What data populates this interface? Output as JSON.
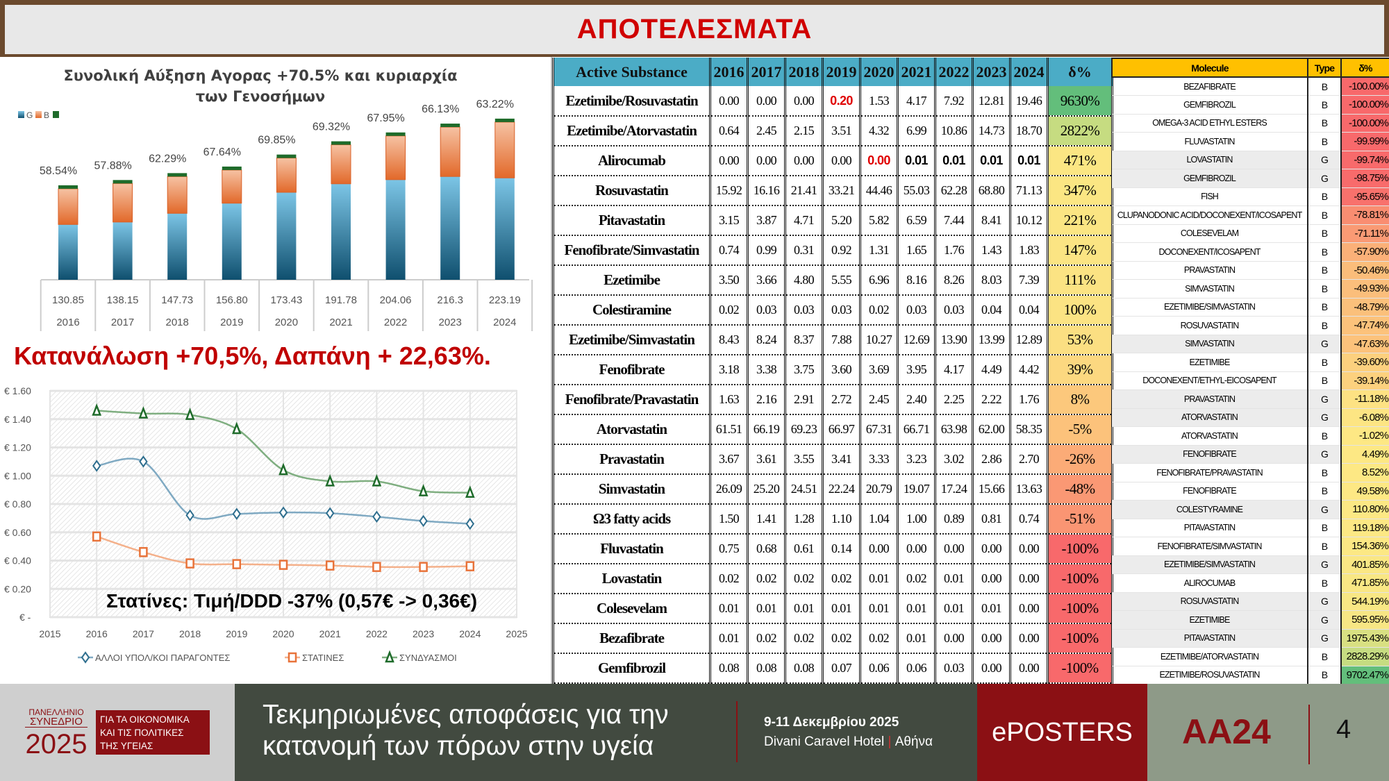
{
  "title": "ΑΠΟΤΕΛΕΣΜΑΤΑ",
  "headline": "Κατανάλωση +70,5%, Δαπάνη + 22,63%.",
  "main_table": {
    "headers": [
      "Active Substance",
      "2016",
      "2017",
      "2018",
      "2019",
      "2020",
      "2021",
      "2022",
      "2023",
      "2024",
      "δ%"
    ],
    "rows": [
      {
        "name": "Ezetimibe/Rosuvastatin",
        "values": [
          "0.00",
          "0.00",
          "0.00",
          "0.20",
          "1.53",
          "4.17",
          "7.92",
          "12.81",
          "19.46"
        ],
        "delta": "9630%",
        "color": "#63be7b",
        "red": [
          3
        ],
        "bold": []
      },
      {
        "name": "Ezetimibe/Atorvastatin",
        "values": [
          "0.64",
          "2.45",
          "2.15",
          "3.51",
          "4.32",
          "6.99",
          "10.86",
          "14.73",
          "18.70"
        ],
        "delta": "2822%",
        "color": "#c6dc81",
        "red": [],
        "bold": []
      },
      {
        "name": "Alirocumab",
        "values": [
          "0.00",
          "0.00",
          "0.00",
          "0.00",
          "0.00",
          "0.01",
          "0.01",
          "0.01",
          "0.01"
        ],
        "delta": "471%",
        "color": "#fbe683",
        "red": [
          4
        ],
        "bold": [
          5,
          6,
          7,
          8
        ]
      },
      {
        "name": "Rosuvastatin",
        "values": [
          "15.92",
          "16.16",
          "21.41",
          "33.21",
          "44.46",
          "55.03",
          "62.28",
          "68.80",
          "71.13"
        ],
        "delta": "347%",
        "color": "#fbe683",
        "red": [],
        "bold": []
      },
      {
        "name": "Pitavastatin",
        "values": [
          "3.15",
          "3.87",
          "4.71",
          "5.20",
          "5.82",
          "6.59",
          "7.44",
          "8.41",
          "10.12"
        ],
        "delta": "221%",
        "color": "#fbe583",
        "red": [],
        "bold": []
      },
      {
        "name": "Fenofibrate/Simvastatin",
        "values": [
          "0.74",
          "0.99",
          "0.31",
          "0.92",
          "1.31",
          "1.65",
          "1.76",
          "1.43",
          "1.83"
        ],
        "delta": "147%",
        "color": "#fbe483",
        "red": [],
        "bold": []
      },
      {
        "name": "Ezetimibe",
        "values": [
          "3.50",
          "3.66",
          "4.80",
          "5.55",
          "6.96",
          "8.16",
          "8.26",
          "8.03",
          "7.39"
        ],
        "delta": "111%",
        "color": "#fbe383",
        "red": [],
        "bold": []
      },
      {
        "name": "Colestiramine",
        "values": [
          "0.02",
          "0.03",
          "0.03",
          "0.03",
          "0.02",
          "0.03",
          "0.03",
          "0.04",
          "0.04"
        ],
        "delta": "100%",
        "color": "#fbe383",
        "red": [],
        "bold": []
      },
      {
        "name": "Ezetimibe/Simvastatin",
        "values": [
          "8.43",
          "8.24",
          "8.37",
          "7.88",
          "10.27",
          "12.69",
          "13.90",
          "13.99",
          "12.89"
        ],
        "delta": "53%",
        "color": "#fbdf82",
        "red": [],
        "bold": []
      },
      {
        "name": "Fenofibrate",
        "values": [
          "3.18",
          "3.38",
          "3.75",
          "3.60",
          "3.69",
          "3.95",
          "4.17",
          "4.49",
          "4.42"
        ],
        "delta": "39%",
        "color": "#fcd880",
        "red": [],
        "bold": []
      },
      {
        "name": "Fenofibrate/Pravastatin",
        "values": [
          "1.63",
          "2.16",
          "2.91",
          "2.72",
          "2.45",
          "2.40",
          "2.25",
          "2.22",
          "1.76"
        ],
        "delta": "8%",
        "color": "#fcc87c",
        "red": [],
        "bold": []
      },
      {
        "name": "Atorvastatin",
        "values": [
          "61.51",
          "66.19",
          "69.23",
          "66.97",
          "67.31",
          "66.71",
          "63.98",
          "62.00",
          "58.35"
        ],
        "delta": "-5%",
        "color": "#fcc27b",
        "red": [],
        "bold": []
      },
      {
        "name": "Pravastatin",
        "values": [
          "3.67",
          "3.61",
          "3.55",
          "3.41",
          "3.33",
          "3.23",
          "3.02",
          "2.86",
          "2.70"
        ],
        "delta": "-26%",
        "color": "#fbab77",
        "red": [],
        "bold": []
      },
      {
        "name": "Simvastatin",
        "values": [
          "26.09",
          "25.20",
          "24.51",
          "22.24",
          "20.79",
          "19.07",
          "17.24",
          "15.66",
          "13.63"
        ],
        "delta": "-48%",
        "color": "#fa9874",
        "red": [],
        "bold": []
      },
      {
        "name": "Ω3 fatty acids",
        "values": [
          "1.50",
          "1.41",
          "1.28",
          "1.10",
          "1.04",
          "1.00",
          "0.89",
          "0.81",
          "0.74"
        ],
        "delta": "-51%",
        "color": "#fa9573",
        "red": [],
        "bold": []
      },
      {
        "name": "Fluvastatin",
        "values": [
          "0.75",
          "0.68",
          "0.61",
          "0.14",
          "0.00",
          "0.00",
          "0.00",
          "0.00",
          "0.00"
        ],
        "delta": "-100%",
        "color": "#f8696b",
        "red": [],
        "bold": []
      },
      {
        "name": "Lovastatin",
        "values": [
          "0.02",
          "0.02",
          "0.02",
          "0.02",
          "0.01",
          "0.02",
          "0.01",
          "0.00",
          "0.00"
        ],
        "delta": "-100%",
        "color": "#f8696b",
        "red": [],
        "bold": []
      },
      {
        "name": "Colesevelam",
        "values": [
          "0.01",
          "0.01",
          "0.01",
          "0.01",
          "0.01",
          "0.01",
          "0.01",
          "0.01",
          "0.00"
        ],
        "delta": "-100%",
        "color": "#f8696b",
        "red": [],
        "bold": []
      },
      {
        "name": "Bezafibrate",
        "values": [
          "0.01",
          "0.02",
          "0.02",
          "0.02",
          "0.02",
          "0.01",
          "0.00",
          "0.00",
          "0.00"
        ],
        "delta": "-100%",
        "color": "#f8696b",
        "red": [],
        "bold": []
      },
      {
        "name": "Gemfibrozil",
        "values": [
          "0.08",
          "0.08",
          "0.08",
          "0.07",
          "0.06",
          "0.06",
          "0.03",
          "0.00",
          "0.00"
        ],
        "delta": "-100%",
        "color": "#f8696b",
        "red": [],
        "bold": []
      }
    ]
  },
  "side_table": {
    "headers": [
      "Molecule",
      "Type",
      "δ%"
    ],
    "rows": [
      {
        "molecule": "BEZAFIBRATE",
        "type": "B",
        "delta": "-100.00%",
        "color": "#f8696b"
      },
      {
        "molecule": "GEMFIBROZIL",
        "type": "B",
        "delta": "-100.00%",
        "color": "#f8696b"
      },
      {
        "molecule": "OMEGA-3 ACID ETHYL ESTERS",
        "type": "B",
        "delta": "-100.00%",
        "color": "#f8696b"
      },
      {
        "molecule": "FLUVASTATIN",
        "type": "B",
        "delta": "-99.99%",
        "color": "#f8696b"
      },
      {
        "molecule": "LOVASTATIN",
        "type": "G",
        "delta": "-99.74%",
        "color": "#f86a6b"
      },
      {
        "molecule": "GEMFIBROZIL",
        "type": "G",
        "delta": "-98.75%",
        "color": "#f86b6b"
      },
      {
        "molecule": "FISH",
        "type": "B",
        "delta": "-95.65%",
        "color": "#f8716c"
      },
      {
        "molecule": "CLUPANODONIC ACID/DOCONEXENT/ICOSAPENT",
        "type": "B",
        "delta": "-78.81%",
        "color": "#f98d71"
      },
      {
        "molecule": "COLESEVELAM",
        "type": "B",
        "delta": "-71.11%",
        "color": "#fa9a74"
      },
      {
        "molecule": "DOCONEXENT/ICOSAPENT",
        "type": "B",
        "delta": "-57.90%",
        "color": "#fbb078"
      },
      {
        "molecule": "PRAVASTATIN",
        "type": "B",
        "delta": "-50.46%",
        "color": "#fbbd7a"
      },
      {
        "molecule": "SIMVASTATIN",
        "type": "B",
        "delta": "-49.93%",
        "color": "#fbbe7b"
      },
      {
        "molecule": "EZETIMIBE/SIMVASTATIN",
        "type": "B",
        "delta": "-48.79%",
        "color": "#fbc07b"
      },
      {
        "molecule": "ROSUVASTATIN",
        "type": "B",
        "delta": "-47.74%",
        "color": "#fcc27b"
      },
      {
        "molecule": "SIMVASTATIN",
        "type": "G",
        "delta": "-47.63%",
        "color": "#fcc27b"
      },
      {
        "molecule": "EZETIMIBE",
        "type": "B",
        "delta": "-39.60%",
        "color": "#fcd07e"
      },
      {
        "molecule": "DOCONEXENT/ETHYL-EICOSAPENT",
        "type": "B",
        "delta": "-39.14%",
        "color": "#fcd17e"
      },
      {
        "molecule": "PRAVASTATIN",
        "type": "G",
        "delta": "-11.18%",
        "color": "#fde283"
      },
      {
        "molecule": "ATORVASTATIN",
        "type": "G",
        "delta": "-6.08%",
        "color": "#fde583"
      },
      {
        "molecule": "ATORVASTATIN",
        "type": "B",
        "delta": "-1.02%",
        "color": "#fde884"
      },
      {
        "molecule": "FENOFIBRATE",
        "type": "G",
        "delta": "4.49%",
        "color": "#fde884"
      },
      {
        "molecule": "FENOFIBRATE/PRAVASTATIN",
        "type": "B",
        "delta": "8.52%",
        "color": "#fde884"
      },
      {
        "molecule": "FENOFIBRATE",
        "type": "B",
        "delta": "49.58%",
        "color": "#fde884"
      },
      {
        "molecule": "COLESTYRAMINE",
        "type": "G",
        "delta": "110.80%",
        "color": "#fce884"
      },
      {
        "molecule": "PITAVASTATIN",
        "type": "B",
        "delta": "119.18%",
        "color": "#fce884"
      },
      {
        "molecule": "FENOFIBRATE/SIMVASTATIN",
        "type": "B",
        "delta": "154.36%",
        "color": "#fce884"
      },
      {
        "molecule": "EZETIMIBE/SIMVASTATIN",
        "type": "G",
        "delta": "401.85%",
        "color": "#fae784"
      },
      {
        "molecule": "ALIROCUMAB",
        "type": "B",
        "delta": "471.85%",
        "color": "#f9e784"
      },
      {
        "molecule": "ROSUVASTATIN",
        "type": "G",
        "delta": "544.19%",
        "color": "#f8e784"
      },
      {
        "molecule": "EZETIMIBE",
        "type": "G",
        "delta": "595.95%",
        "color": "#f7e684"
      },
      {
        "molecule": "PITAVASTATIN",
        "type": "G",
        "delta": "1975.43%",
        "color": "#d9e082"
      },
      {
        "molecule": "EZETIMIBE/ATORVASTATIN",
        "type": "B",
        "delta": "2828.29%",
        "color": "#c6dc81"
      },
      {
        "molecule": "EZETIMIBE/ROSUVASTATIN",
        "type": "B",
        "delta": "9702.47%",
        "color": "#63be7b"
      }
    ]
  },
  "chart_data": [
    {
      "type": "bar",
      "title": "Συνολική Αύξηση Αγορας +70.5% και κυριαρχία των Γενοσήμων",
      "legend": [
        "G",
        "B",
        ""
      ],
      "legend_position": "top-left",
      "categories": [
        "2016",
        "2017",
        "2018",
        "2019",
        "2020",
        "2021",
        "2022",
        "2023",
        "2024"
      ],
      "totals": [
        "130.85",
        "138.15",
        "147.73",
        "156.80",
        "173.43",
        "191.78",
        "204.06",
        "216.3",
        "223.19"
      ],
      "total_values": [
        130.85,
        138.15,
        147.73,
        156.8,
        173.43,
        191.78,
        204.06,
        216.3,
        223.19
      ],
      "generic_share_labels": [
        "58.54%",
        "57.88%",
        "62.29%",
        "67.64%",
        "69.85%",
        "69.32%",
        "67.95%",
        "66.13%",
        "63.22%"
      ],
      "generic_share": [
        58.54,
        57.88,
        62.29,
        67.64,
        69.85,
        69.32,
        67.95,
        66.13,
        63.22
      ],
      "colors": {
        "G": "#1f6f94",
        "B": "#e8733a",
        "other": "#1e6b2a"
      }
    },
    {
      "type": "line",
      "title": "",
      "annotation": "Στατίνες: Τιμή/DDD -37% (0,57€ -> 0,36€)",
      "x": [
        2016,
        2017,
        2018,
        2019,
        2020,
        2021,
        2022,
        2023,
        2024
      ],
      "xlim": [
        2015,
        2025
      ],
      "xticks": [
        "2015",
        "2016",
        "2017",
        "2018",
        "2019",
        "2020",
        "2021",
        "2022",
        "2023",
        "2024",
        "2025"
      ],
      "ylim": [
        0,
        1.6
      ],
      "yticks": [
        "€ -",
        "€ 0.20",
        "€ 0.40",
        "€ 0.60",
        "€ 0.80",
        "€ 1.00",
        "€ 1.20",
        "€ 1.40",
        "€ 1.60"
      ],
      "grid": true,
      "legend_position": "bottom",
      "series": [
        {
          "name": "ΑΛΛΟΙ ΥΠΟΛ/ΚΟΙ ΠΑΡΑΓΟΝΤΕΣ",
          "marker": "diamond",
          "color": "#2e6e8e",
          "line": "#7fa9c2",
          "values": [
            1.07,
            1.1,
            0.72,
            0.73,
            0.74,
            0.735,
            0.71,
            0.68,
            0.66
          ]
        },
        {
          "name": "ΣΤΑΤΙΝΕΣ",
          "marker": "square",
          "color": "#e8733a",
          "line": "#f4b08a",
          "values": [
            0.57,
            0.46,
            0.38,
            0.375,
            0.37,
            0.365,
            0.355,
            0.355,
            0.36
          ]
        },
        {
          "name": "ΣΥΝΔΥΑΣΜΟΙ",
          "marker": "triangle",
          "color": "#1e6b2a",
          "line": "#7fae80",
          "values": [
            1.46,
            1.44,
            1.43,
            1.33,
            1.04,
            0.96,
            0.96,
            0.89,
            0.88
          ]
        }
      ]
    }
  ],
  "footer": {
    "logo_line1": "ΠΑΝΕΛΛΗΝΙΟ",
    "logo_line2": "ΣΥΝΕΔΡΙΟ",
    "logo_year": "2025",
    "logo_box": [
      "ΓΙΑ ΤΑ ΟΙΚΟΝΟΜΙΚΑ",
      "ΚΑΙ ΤΙΣ ΠΟΛΙΤΙΚΕΣ",
      "ΤΗΣ ΥΓΕΙΑΣ"
    ],
    "slogan_line1": "Τεκμηριωμένες αποφάσεις για την",
    "slogan_line2": "κατανομή των πόρων στην υγεία",
    "date": "9-11 Δεκεμβρίου 2025",
    "venue": "Divani Caravel Hotel",
    "city": "Αθήνα",
    "eposters": "ePOSTERS",
    "code": "ΑΑ24",
    "page": "4"
  }
}
